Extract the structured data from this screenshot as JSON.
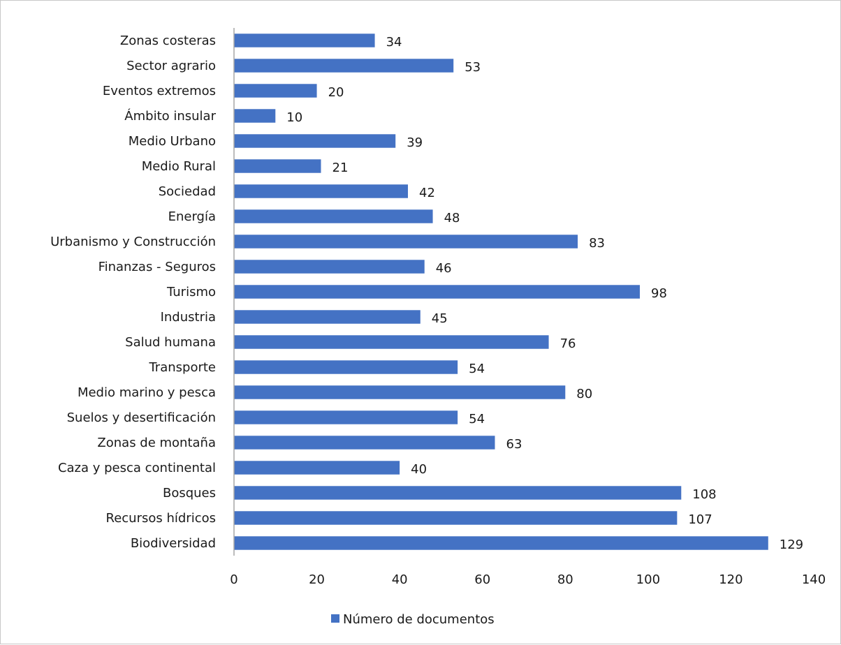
{
  "chart_data": {
    "type": "bar",
    "orientation": "horizontal",
    "categories": [
      "Zonas costeras",
      "Sector agrario",
      "Eventos extremos",
      "Ámbito insular",
      "Medio Urbano",
      "Medio Rural",
      "Sociedad",
      "Energía",
      "Urbanismo y Construcción",
      "Finanzas - Seguros",
      "Turismo",
      "Industria",
      "Salud humana",
      "Transporte",
      "Medio marino y pesca",
      "Suelos y desertificación",
      "Zonas de montaña",
      "Caza y pesca continental",
      "Bosques",
      "Recursos hídricos",
      "Biodiversidad"
    ],
    "series": [
      {
        "name": "Número de documentos",
        "values": [
          34,
          53,
          20,
          10,
          39,
          21,
          42,
          48,
          83,
          46,
          98,
          45,
          76,
          54,
          80,
          54,
          63,
          40,
          108,
          107,
          129
        ],
        "color": "#4472C4"
      }
    ],
    "x_ticks": [
      "0",
      "20",
      "40",
      "60",
      "80",
      "100",
      "120",
      "140"
    ],
    "xlim": [
      0,
      140
    ],
    "grid": false,
    "legend_position": "bottom",
    "data_labels": true
  }
}
